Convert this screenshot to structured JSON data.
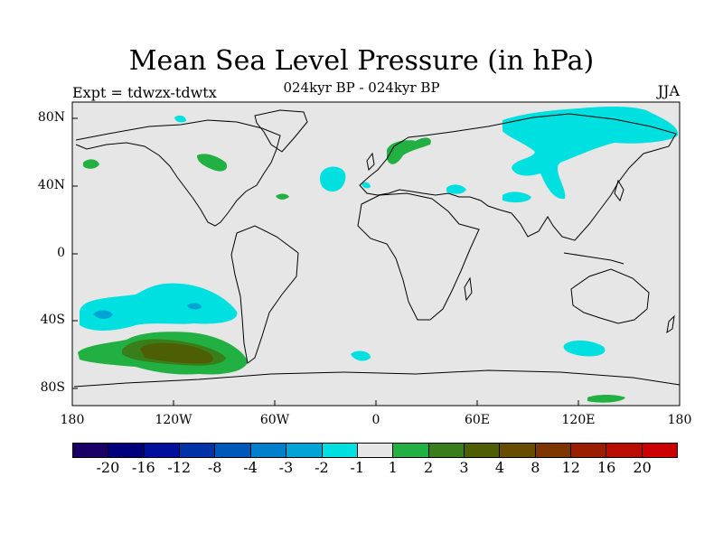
{
  "header": {
    "title": "Mean Sea Level Pressure (in hPa)",
    "subtitle": "024kyr BP - 024kyr BP",
    "left_label": "Expt = tdwzx-tdwtx",
    "right_label": "JJA"
  },
  "map": {
    "projection": "cylindrical-equidistant",
    "background_color": "#e6e6e6",
    "lat_ticks": [
      "80N",
      "40N",
      "0",
      "40S",
      "80S"
    ],
    "lon_ticks": [
      "180",
      "120W",
      "60W",
      "0",
      "60E",
      "120E",
      "180"
    ]
  },
  "colorbar": {
    "colors": [
      "#1a0066",
      "#00007d",
      "#00109c",
      "#0033a6",
      "#0059b8",
      "#0080cc",
      "#00a5d6",
      "#00e0e0",
      "#e6e6e6",
      "#21b041",
      "#3a7d1b",
      "#4d5e05",
      "#664d00",
      "#7d3600",
      "#991f00",
      "#b80d00",
      "#cc0000"
    ],
    "labels": [
      "-20",
      "-16",
      "-12",
      "-8",
      "-4",
      "-3",
      "-2",
      "-1",
      "1",
      "2",
      "3",
      "4",
      "8",
      "12",
      "16",
      "20"
    ]
  }
}
